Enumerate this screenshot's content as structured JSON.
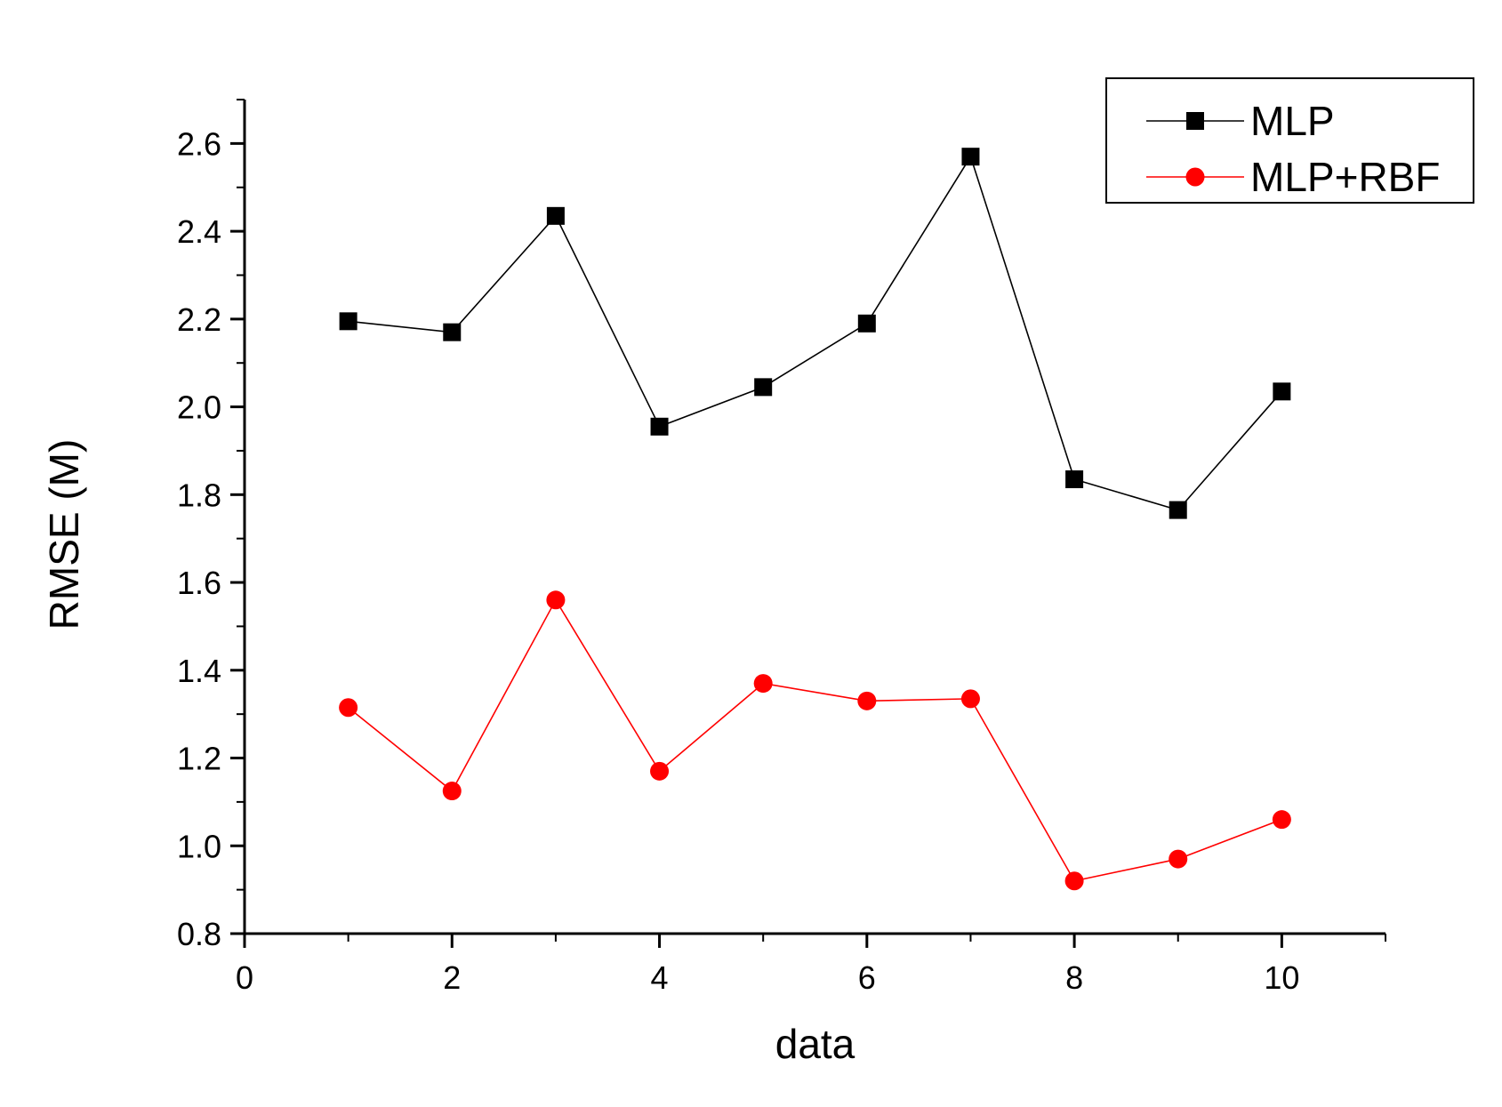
{
  "chart_data": {
    "type": "line",
    "title": "",
    "xlabel": "data",
    "ylabel": "RMSE (M)",
    "xlim": [
      0,
      11
    ],
    "ylim": [
      0.8,
      2.7
    ],
    "xticks": [
      0,
      2,
      4,
      6,
      8,
      10
    ],
    "xtick_labels": [
      "0",
      "2",
      "4",
      "6",
      "8",
      "10"
    ],
    "yticks": [
      0.8,
      1.0,
      1.2,
      1.4,
      1.6,
      1.8,
      2.0,
      2.2,
      2.4,
      2.6
    ],
    "ytick_labels": [
      "0.8",
      "1.0",
      "1.2",
      "1.4",
      "1.6",
      "1.8",
      "2.0",
      "2.2",
      "2.4",
      "2.6"
    ],
    "grid": false,
    "legend_position": "top-right",
    "series": [
      {
        "name": "MLP",
        "color": "#000000",
        "marker": "square",
        "x": [
          1,
          2,
          3,
          4,
          5,
          6,
          7,
          8,
          9,
          10
        ],
        "values": [
          2.195,
          2.17,
          2.435,
          1.955,
          2.045,
          2.19,
          2.57,
          1.835,
          1.765,
          2.035
        ]
      },
      {
        "name": "MLP+RBF",
        "color": "#ff0000",
        "marker": "circle",
        "x": [
          1,
          2,
          3,
          4,
          5,
          6,
          7,
          8,
          9,
          10
        ],
        "values": [
          1.315,
          1.125,
          1.56,
          1.17,
          1.37,
          1.33,
          1.335,
          0.92,
          0.97,
          1.06
        ]
      }
    ]
  }
}
